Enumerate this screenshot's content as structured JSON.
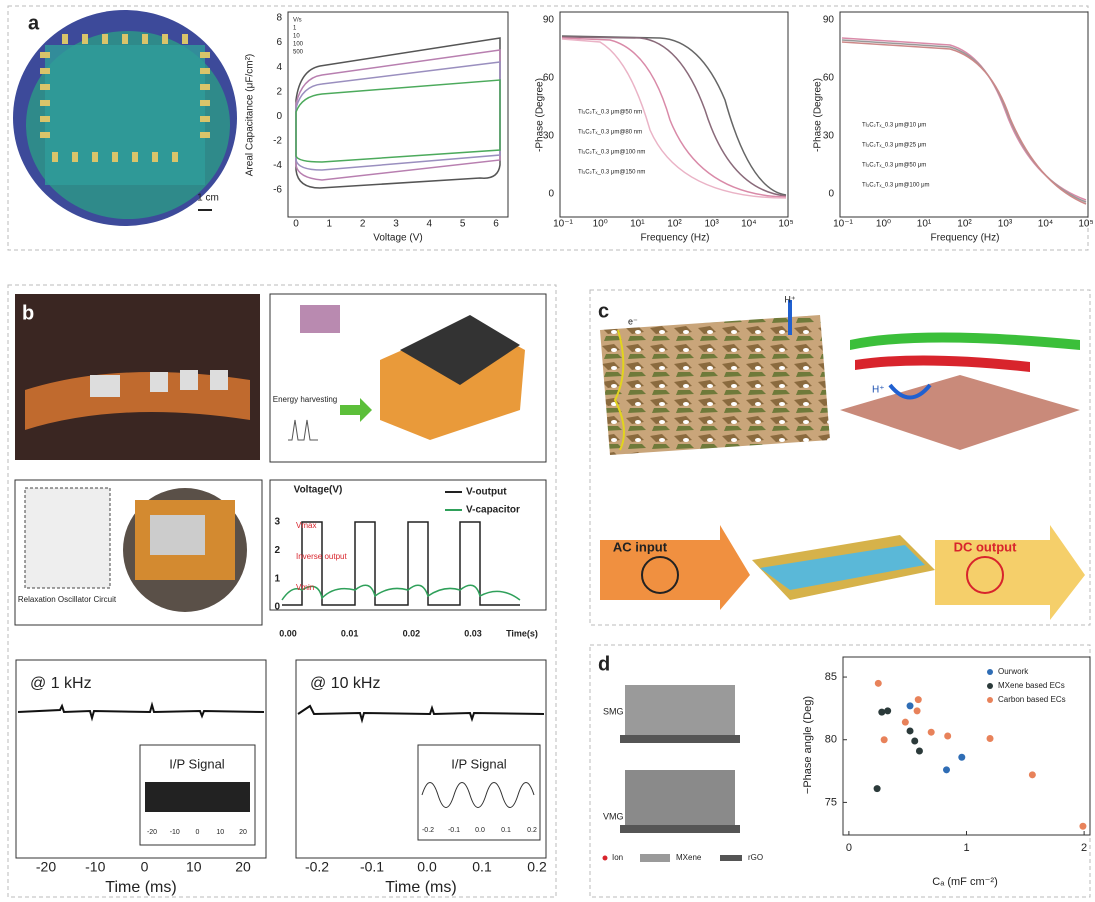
{
  "panel_a": {
    "label": "a",
    "scale_bar": "1 cm",
    "cv": {
      "ylabel": "Areal Capacitance (μF/cm²)",
      "xlabel": "Voltage (V)",
      "xticks": [
        "0",
        "1",
        "2",
        "3",
        "4",
        "5",
        "6"
      ],
      "yticks": [
        "8",
        "6",
        "4",
        "2",
        "0",
        "-2",
        "-4",
        "-6"
      ],
      "legend": [
        "V/s",
        "1",
        "10",
        "100",
        "500"
      ]
    },
    "phase_left": {
      "ylabel": "-Phase (Degree)",
      "xlabel": "Frequency (Hz)",
      "yticks": [
        "90",
        "60",
        "30",
        "0"
      ],
      "xticks": [
        "10⁻¹",
        "10⁰",
        "10¹",
        "10²",
        "10³",
        "10⁴",
        "10⁵"
      ],
      "legend": [
        "Ti₃C₂Tₓ_0.3 μm@50 nm",
        "Ti₃C₂Tₓ_0.3 μm@80 nm",
        "Ti₃C₂Tₓ_0.3 μm@100 nm",
        "Ti₃C₂Tₓ_0.3 μm@150 nm"
      ]
    },
    "phase_right": {
      "ylabel": "-Phase (Degree)",
      "xlabel": "Frequency (Hz)",
      "yticks": [
        "90",
        "60",
        "30",
        "0"
      ],
      "xticks": [
        "10⁻¹",
        "10⁰",
        "10¹",
        "10²",
        "10³",
        "10⁴",
        "10⁵"
      ],
      "legend": [
        "Ti₃C₂Tₓ_0.3 μm@10 μm",
        "Ti₃C₂Tₓ_0.3 μm@25 μm",
        "Ti₃C₂Tₓ_0.3 μm@50 μm",
        "Ti₃C₂Tₓ_0.3 μm@100 μm"
      ]
    }
  },
  "panel_b": {
    "label": "b",
    "energy_harvesting": "Energy harvesting",
    "circuit": "Relaxation Oscillator Circuit",
    "voltage_plot": {
      "ylabel": "Voltage(V)",
      "xlabel": "Time(s)",
      "legend": [
        "V-output",
        "V-capacitor"
      ],
      "annotations": [
        "Vmax",
        "Inverse output",
        "Vmin"
      ],
      "yticks": [
        "3",
        "2",
        "1",
        "0"
      ],
      "xticks": [
        "0.00",
        "0.01",
        "0.02",
        "0.03"
      ]
    },
    "khz1": {
      "title": "@ 1 kHz",
      "inset": "I/P Signal",
      "xlabel": "Time (ms)",
      "xticks": [
        "-20",
        "-10",
        "0",
        "10",
        "20"
      ],
      "inset_ticks": [
        "-20",
        "-10",
        "0",
        "10",
        "20"
      ]
    },
    "khz10": {
      "title": "@ 10 kHz",
      "inset": "I/P Signal",
      "xlabel": "Time (ms)",
      "xticks": [
        "-0.2",
        "-0.1",
        "0.0",
        "0.1",
        "0.2"
      ],
      "inset_ticks": [
        "-0.2",
        "-0.1",
        "0.0",
        "0.1",
        "0.2"
      ]
    }
  },
  "panel_c": {
    "label": "c",
    "electron": "e⁻",
    "proton_top": "H⁺",
    "proton_side": "H⁺",
    "ac": "AC input",
    "dc": "DC output"
  },
  "panel_d": {
    "label": "d",
    "models": [
      "SMG",
      "VMG"
    ],
    "model_legend": [
      "Ion",
      "MXene",
      "rGO"
    ],
    "scatter": {
      "ylabel": "−Phase angle (Deg)",
      "xlabel": "Cₐ (mF cm⁻²)",
      "xlim": [
        -0.05,
        2.05
      ],
      "ylim": [
        72.4,
        86.6
      ],
      "xticks": [
        0,
        1,
        2
      ],
      "yticks": [
        75,
        80,
        85
      ],
      "series": [
        {
          "name": "Ourwork",
          "color": "#2f6db5",
          "x": [
            0.52,
            0.83,
            0.96
          ],
          "y": [
            82.7,
            77.6,
            78.6
          ]
        },
        {
          "name": "MXene based ECs",
          "color": "#2b3a3a",
          "x": [
            0.28,
            0.33,
            0.24,
            0.52,
            0.56,
            0.6
          ],
          "y": [
            82.2,
            82.3,
            76.1,
            80.7,
            79.9,
            79.1
          ]
        },
        {
          "name": "Carbon based ECs",
          "color": "#e8825a",
          "x": [
            0.25,
            0.3,
            0.48,
            0.59,
            0.58,
            0.7,
            0.84,
            1.2,
            1.56,
            1.99
          ],
          "y": [
            84.5,
            80,
            81.4,
            83.2,
            82.3,
            80.6,
            80.3,
            80.1,
            77.2,
            73.1
          ]
        }
      ]
    }
  }
}
